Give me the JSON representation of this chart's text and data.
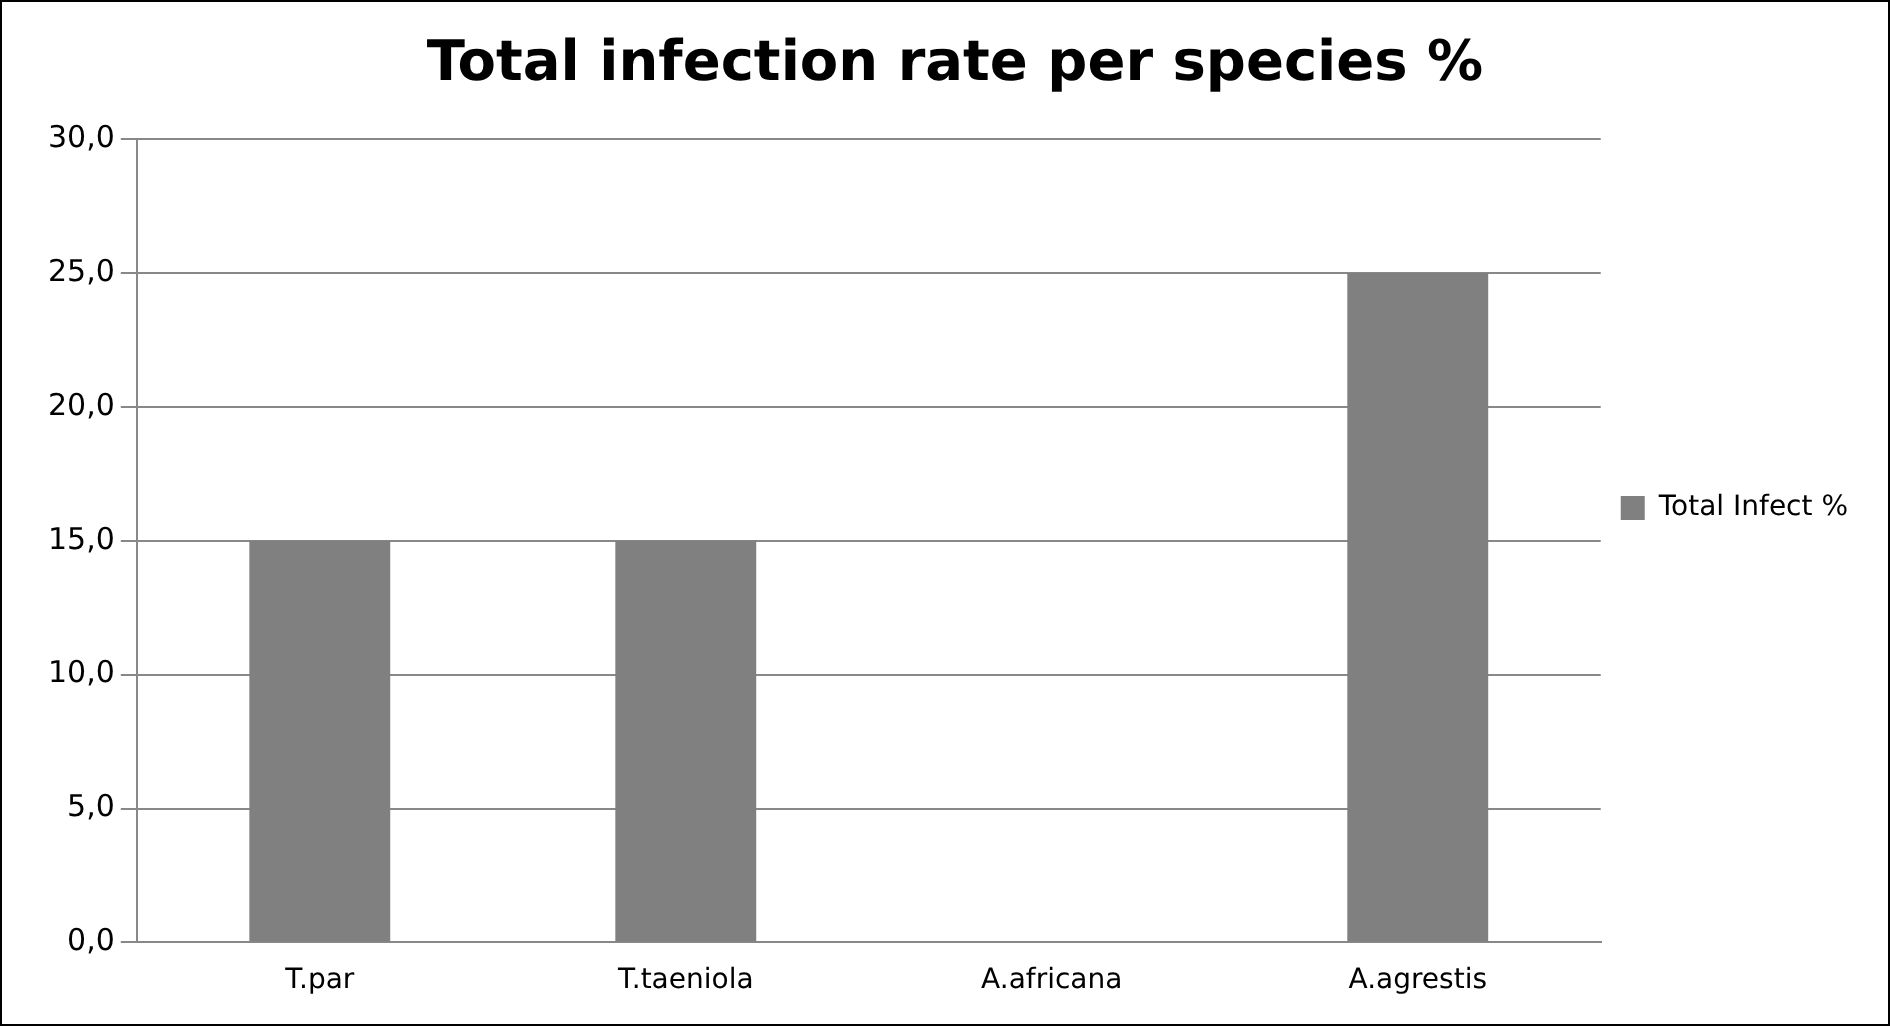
{
  "chart_data": {
    "type": "bar",
    "title": "Total infection rate per species %",
    "categories": [
      "T.par",
      "T.taeniola",
      "A.africana",
      "A.agrestis"
    ],
    "series": [
      {
        "name": "Total Infect %",
        "color": "#808080",
        "values": [
          15,
          15,
          0,
          25
        ]
      }
    ],
    "ylim": [
      0,
      30
    ],
    "yticks": [
      {
        "value": 0,
        "label": "0,0"
      },
      {
        "value": 5,
        "label": "5,0"
      },
      {
        "value": 10,
        "label": "10,0"
      },
      {
        "value": 15,
        "label": "15,0"
      },
      {
        "value": 20,
        "label": "20,0"
      },
      {
        "value": 25,
        "label": "25,0"
      },
      {
        "value": 30,
        "label": "30,0"
      }
    ],
    "grid": "y",
    "legend": "right"
  }
}
